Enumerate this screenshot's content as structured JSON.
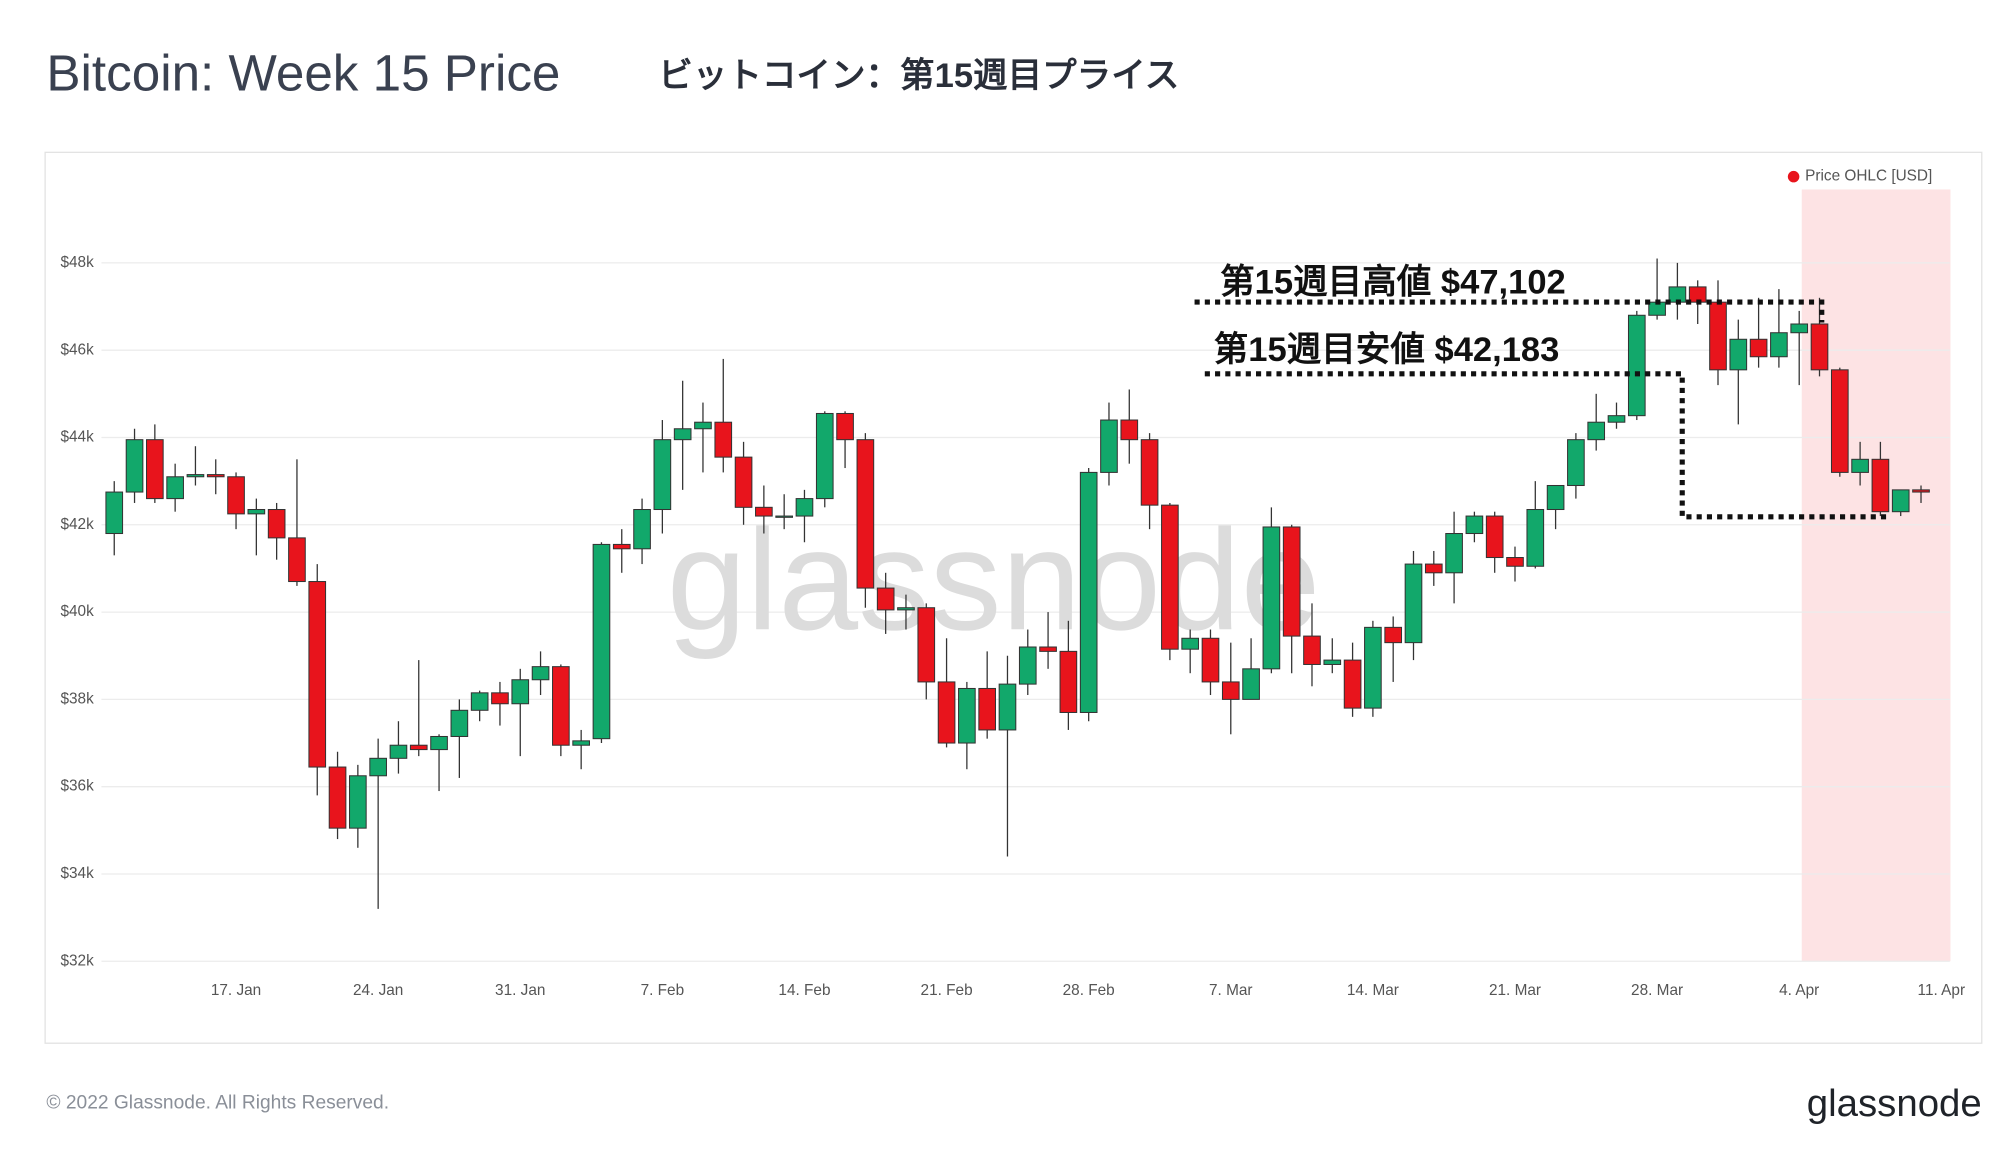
{
  "chart_data": {
    "type": "candlestick",
    "title": "Bitcoin: Week 15 Price",
    "subtitle": "ビットコイン：第15週目プライス",
    "watermark": "glassnode",
    "footer": "© 2022 Glassnode. All Rights Reserved.",
    "logo": "glassnode",
    "categories": [
      "11. Jan",
      "12. Jan",
      "13. Jan",
      "14. Jan",
      "15. Jan",
      "16. Jan",
      "17. Jan",
      "18. Jan",
      "19. Jan",
      "20. Jan",
      "21. Jan",
      "22. Jan",
      "23. Jan",
      "24. Jan",
      "25. Jan",
      "26. Jan",
      "27. Jan",
      "28. Jan",
      "29. Jan",
      "30. Jan",
      "31. Jan",
      "1. Feb",
      "2. Feb",
      "3. Feb",
      "4. Feb",
      "5. Feb",
      "6. Feb",
      "7. Feb",
      "8. Feb",
      "9. Feb",
      "10. Feb",
      "11. Feb",
      "12. Feb",
      "13. Feb",
      "14. Feb",
      "15. Feb",
      "16. Feb",
      "17. Feb",
      "18. Feb",
      "19. Feb",
      "20. Feb",
      "21. Feb",
      "22. Feb",
      "23. Feb",
      "24. Feb",
      "25. Feb",
      "26. Feb",
      "27. Feb",
      "28. Feb",
      "1. Mar",
      "2. Mar",
      "3. Mar",
      "4. Mar",
      "5. Mar",
      "6. Mar",
      "7. Mar",
      "8. Mar",
      "9. Mar",
      "10. Mar",
      "11. Mar",
      "12. Mar",
      "13. Mar",
      "14. Mar",
      "15. Mar",
      "16. Mar",
      "17. Mar",
      "18. Mar",
      "19. Mar",
      "20. Mar",
      "21. Mar",
      "22. Mar",
      "23. Mar",
      "24. Mar",
      "25. Mar",
      "26. Mar",
      "27. Mar",
      "28. Mar",
      "29. Mar",
      "30. Mar",
      "31. Mar",
      "1. Apr",
      "2. Apr",
      "3. Apr",
      "4. Apr",
      "5. Apr",
      "6. Apr",
      "7. Apr",
      "8. Apr",
      "9. Apr",
      "10. Apr",
      "11. Apr"
    ],
    "series": [
      {
        "name": "Price OHLC [USD]",
        "color": "#e8141c",
        "up_color": "#12a86b",
        "down_color": "#e8141c",
        "open": [
          41800,
          42750,
          43950,
          42600,
          43100,
          43150,
          43100,
          42250,
          42350,
          41700,
          40700,
          36450,
          35050,
          36250,
          36650,
          36950,
          36850,
          37150,
          37750,
          38150,
          37900,
          38450,
          38750,
          36950,
          37100,
          41550,
          41450,
          42350,
          43950,
          44200,
          44350,
          43550,
          42400,
          42200,
          42200,
          42600,
          44550,
          43950,
          40550,
          40050,
          40100,
          38400,
          37000,
          38250,
          37300,
          38350,
          39200,
          39100,
          37700,
          43200,
          44400,
          43950,
          42450,
          39150,
          39400,
          38400,
          38000,
          38700,
          41950,
          39450,
          38800,
          38900,
          37800,
          39650,
          39300,
          41100,
          40900,
          41800,
          42200,
          41250,
          41050,
          42350,
          42900,
          43950,
          44350,
          44500,
          46800,
          47100,
          47450,
          47100,
          45550,
          46250,
          45850,
          46400,
          46600,
          45550,
          43200,
          43500,
          42300,
          42800,
          null
        ],
        "high": [
          43000,
          44200,
          44300,
          43400,
          43800,
          43500,
          43200,
          42600,
          42500,
          43500,
          41100,
          36800,
          36500,
          37100,
          37500,
          38900,
          37200,
          38000,
          38200,
          38400,
          38700,
          39100,
          38800,
          37300,
          41600,
          41900,
          42600,
          44400,
          45300,
          44800,
          45800,
          43900,
          42900,
          42700,
          42800,
          44600,
          44600,
          44100,
          40900,
          40400,
          40200,
          39400,
          38400,
          39100,
          39000,
          39600,
          40000,
          39800,
          43300,
          44800,
          45100,
          44100,
          42500,
          39600,
          39600,
          39300,
          39400,
          42400,
          42000,
          40200,
          39400,
          39300,
          39800,
          39900,
          41400,
          41400,
          42300,
          42300,
          42300,
          41500,
          43000,
          42900,
          44100,
          45000,
          44800,
          46900,
          48100,
          48000,
          47600,
          47600,
          46700,
          47200,
          47400,
          46900,
          47200,
          45600,
          43900,
          43900,
          42800,
          42900,
          null
        ],
        "low": [
          41300,
          42500,
          42500,
          42300,
          42900,
          42700,
          41900,
          41300,
          41200,
          40600,
          35800,
          34800,
          34600,
          33200,
          36300,
          36700,
          35900,
          36200,
          37500,
          37400,
          36700,
          38100,
          36700,
          36400,
          37000,
          40900,
          41100,
          41800,
          42800,
          43200,
          43200,
          42000,
          41800,
          41900,
          41600,
          42400,
          43300,
          40100,
          39500,
          39600,
          38000,
          36900,
          36400,
          37100,
          34400,
          38100,
          38700,
          37300,
          37500,
          42900,
          43400,
          41900,
          38900,
          38600,
          38100,
          37200,
          38000,
          38600,
          38600,
          38300,
          38600,
          37600,
          37600,
          38400,
          38900,
          40600,
          40200,
          41600,
          40900,
          40700,
          41000,
          41900,
          42600,
          43700,
          44200,
          44400,
          46700,
          46700,
          46600,
          45200,
          44300,
          45600,
          45600,
          45200,
          45400,
          43100,
          42900,
          42200,
          42200,
          42500,
          null
        ],
        "close": [
          42750,
          43950,
          42600,
          43100,
          43150,
          43100,
          42250,
          42350,
          41700,
          40700,
          36450,
          35050,
          36250,
          36650,
          36950,
          36850,
          37150,
          37750,
          38150,
          37900,
          38450,
          38750,
          36950,
          37050,
          41550,
          41450,
          42350,
          43950,
          44200,
          44350,
          43550,
          42400,
          42200,
          42200,
          42600,
          44550,
          43950,
          40550,
          40050,
          40100,
          38400,
          37000,
          38250,
          37300,
          38350,
          39200,
          39100,
          37700,
          43200,
          44400,
          43950,
          42450,
          39150,
          39400,
          38400,
          38000,
          38700,
          41950,
          39450,
          38800,
          38900,
          37800,
          39650,
          39300,
          41100,
          40900,
          41800,
          42200,
          41250,
          41050,
          42350,
          42900,
          43950,
          44350,
          44500,
          46800,
          47100,
          47450,
          47100,
          45550,
          46250,
          45850,
          46400,
          46600,
          45550,
          43200,
          43500,
          42300,
          42800,
          42750,
          null
        ]
      }
    ],
    "ylim": [
      32000,
      49800
    ],
    "yticks": [
      {
        "value": 32000,
        "label": "$32k"
      },
      {
        "value": 34000,
        "label": "$34k"
      },
      {
        "value": 36000,
        "label": "$36k"
      },
      {
        "value": 38000,
        "label": "$38k"
      },
      {
        "value": 40000,
        "label": "$40k"
      },
      {
        "value": 42000,
        "label": "$42k"
      },
      {
        "value": 44000,
        "label": "$44k"
      },
      {
        "value": 46000,
        "label": "$46k"
      },
      {
        "value": 48000,
        "label": "$48k"
      }
    ],
    "xticks": [
      "17. Jan",
      "24. Jan",
      "31. Jan",
      "7. Feb",
      "14. Feb",
      "21. Feb",
      "28. Feb",
      "7. Mar",
      "14. Mar",
      "21. Mar",
      "28. Mar",
      "4. Apr",
      "11. Apr"
    ],
    "grid": true,
    "legend": "top-right",
    "highlight": {
      "from": "4. Apr",
      "to": "10. Apr",
      "color": "#fde3e4"
    },
    "annotations": [
      {
        "text": "第15週目高値 $47,102",
        "value": 47102
      },
      {
        "text": "第15週目安値  $42,183",
        "value": 42183
      }
    ]
  }
}
